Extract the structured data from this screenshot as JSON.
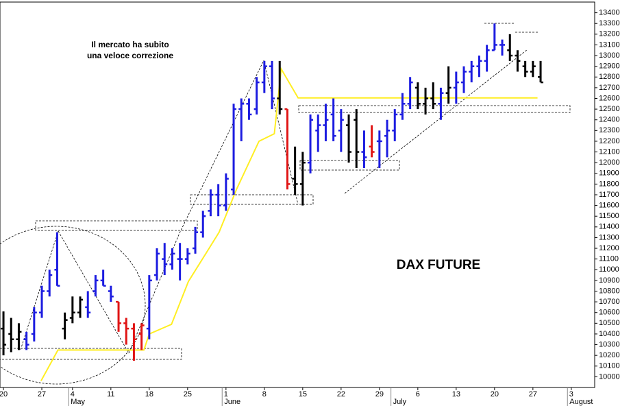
{
  "chart_data": {
    "type": "ohlc",
    "title": "DAX FUTURE",
    "annotation": [
      "Il mercato ha subito",
      "una veloce correzione"
    ],
    "xlim": [
      -0.45,
      77.05
    ],
    "ylim": [
      9900,
      13500
    ],
    "xticks": [
      {
        "value": 0,
        "label": "20"
      },
      {
        "value": 5,
        "label": "27"
      },
      {
        "value": 9,
        "label": "4"
      },
      {
        "value": 14,
        "label": "11"
      },
      {
        "value": 19,
        "label": "18"
      },
      {
        "value": 24,
        "label": "25"
      },
      {
        "value": 29,
        "label": "1"
      },
      {
        "value": 34,
        "label": "8"
      },
      {
        "value": 39,
        "label": "15"
      },
      {
        "value": 44,
        "label": "22"
      },
      {
        "value": 49,
        "label": "29"
      },
      {
        "value": 54,
        "label": "6"
      },
      {
        "value": 59,
        "label": "13"
      },
      {
        "value": 64,
        "label": "20"
      },
      {
        "value": 69,
        "label": "27"
      },
      {
        "value": 74,
        "label": "3"
      }
    ],
    "month_ticks": [
      {
        "value": 8.5,
        "label": "May"
      },
      {
        "value": 28.5,
        "label": "June"
      },
      {
        "value": 50.5,
        "label": "July"
      },
      {
        "value": 73.5,
        "label": "August"
      }
    ],
    "yticks": [
      10000,
      10100,
      10200,
      10300,
      10400,
      10500,
      10600,
      10700,
      10800,
      10900,
      11000,
      11100,
      11200,
      11300,
      11400,
      11500,
      11600,
      11700,
      11800,
      11900,
      12000,
      12100,
      12200,
      12300,
      12400,
      12500,
      12600,
      12700,
      12800,
      12900,
      13000,
      13100,
      13200,
      13300,
      13400
    ],
    "palette": {
      "b": "#1c1ce0",
      "k": "#000000",
      "r": "#e01414"
    },
    "x": [
      0,
      1,
      2,
      3,
      4,
      5,
      6,
      7,
      8,
      9,
      10,
      11,
      12,
      13,
      14,
      15,
      16,
      17,
      18,
      19,
      20,
      21,
      22,
      23,
      24,
      25,
      26,
      27,
      28,
      29,
      30,
      31,
      32,
      33,
      34,
      35,
      36,
      37,
      38,
      39,
      40,
      41,
      42,
      43,
      44,
      45,
      46,
      47,
      48,
      49,
      50,
      51,
      52,
      53,
      54,
      55,
      56,
      57,
      58,
      59,
      60,
      61,
      62,
      63,
      64,
      65,
      66,
      67,
      68,
      69,
      70
    ],
    "bar_color": [
      "k",
      "k",
      "k",
      "b",
      "b",
      "b",
      "b",
      "b",
      "k",
      "k",
      "k",
      "b",
      "b",
      "b",
      "b",
      "r",
      "r",
      "r",
      "r",
      "b",
      "b",
      "b",
      "b",
      "b",
      "b",
      "b",
      "b",
      "b",
      "b",
      "b",
      "b",
      "b",
      "b",
      "b",
      "b",
      "b",
      "k",
      "r",
      "k",
      "k",
      "b",
      "b",
      "b",
      "b",
      "b",
      "k",
      "k",
      "b",
      "r",
      "b",
      "b",
      "b",
      "b",
      "b",
      "k",
      "k",
      "k",
      "b",
      "k",
      "b",
      "b",
      "b",
      "b",
      "b",
      "b",
      "b",
      "k",
      "k",
      "k",
      "k",
      "k"
    ],
    "open": [
      10450,
      10400,
      10350,
      10350,
      10400,
      10600,
      10800,
      11000,
      10450,
      10550,
      10600,
      10650,
      10800,
      10900,
      10800,
      10700,
      10500,
      10450,
      10400,
      10450,
      10950,
      11100,
      11050,
      11100,
      11100,
      11200,
      11350,
      11550,
      11700,
      11600,
      11750,
      12500,
      12550,
      12500,
      12750,
      12900,
      12600,
      12500,
      11850,
      11800,
      12000,
      12300,
      12350,
      12450,
      12300,
      12350,
      12400,
      12100,
      12150,
      12200,
      12250,
      12300,
      12450,
      12550,
      12700,
      12550,
      12600,
      12550,
      12650,
      12700,
      12750,
      12850,
      12900,
      12950,
      13050,
      13100,
      13050,
      13000,
      12900,
      12850,
      12800
    ],
    "high": [
      10610,
      10550,
      10500,
      10420,
      10650,
      10850,
      11000,
      11350,
      10600,
      10750,
      10750,
      10800,
      10950,
      11000,
      10850,
      10700,
      10550,
      10500,
      10500,
      10950,
      11200,
      11250,
      11200,
      11250,
      11200,
      11400,
      11550,
      11750,
      11800,
      11900,
      12550,
      12600,
      12600,
      12800,
      12950,
      12950,
      12950,
      12500,
      12150,
      12100,
      12450,
      12450,
      12550,
      12600,
      12500,
      12450,
      12500,
      12300,
      12350,
      12300,
      12400,
      12500,
      12650,
      12800,
      12750,
      12700,
      12750,
      12700,
      12900,
      12850,
      12900,
      12950,
      13000,
      13100,
      13300,
      13150,
      13200,
      13050,
      12950,
      12950,
      12950
    ],
    "low": [
      10200,
      10230,
      10250,
      10250,
      10330,
      10550,
      10750,
      10850,
      10350,
      10500,
      10550,
      10550,
      10750,
      10850,
      10700,
      10420,
      10300,
      10150,
      10250,
      10350,
      10900,
      10950,
      11000,
      10900,
      11050,
      11150,
      11300,
      11500,
      11500,
      11550,
      11700,
      12200,
      12400,
      12450,
      12650,
      12500,
      12450,
      11750,
      11700,
      11600,
      11900,
      12100,
      12200,
      12200,
      12100,
      12000,
      11950,
      11950,
      12050,
      11950,
      12050,
      12200,
      12400,
      12500,
      12500,
      12450,
      12500,
      12400,
      12550,
      12550,
      12650,
      12750,
      12800,
      12850,
      13050,
      13000,
      12950,
      12850,
      12800,
      12800,
      12750
    ],
    "close": [
      10300,
      10350,
      10420,
      10300,
      10600,
      10800,
      10950,
      10850,
      10530,
      10600,
      10720,
      10600,
      10900,
      10850,
      10750,
      10500,
      10450,
      10350,
      10480,
      10900,
      11150,
      11050,
      11150,
      11100,
      11150,
      11350,
      11500,
      11700,
      11600,
      11850,
      12500,
      12550,
      12450,
      12750,
      12900,
      12600,
      12500,
      11800,
      11800,
      12000,
      12400,
      12350,
      12400,
      12250,
      12400,
      12100,
      12100,
      12050,
      12100,
      12200,
      12300,
      12450,
      12550,
      12750,
      12550,
      12600,
      12550,
      12650,
      12700,
      12750,
      12850,
      12900,
      12950,
      13050,
      13100,
      13100,
      13000,
      12950,
      12850,
      12900,
      12750
    ],
    "lines": [
      {
        "color": "#ffee22",
        "x": [
          4.9,
          7.1,
          18.3,
          19,
          21.9,
          24.1,
          26.5,
          28.1,
          30.4,
          33.3,
          35.3,
          36.2,
          38.4,
          69.6
        ],
        "values": [
          9962,
          10250,
          10250,
          10400,
          10490,
          10890,
          11165,
          11350,
          11755,
          12200,
          12270,
          12875,
          12605,
          12605
        ]
      }
    ]
  }
}
